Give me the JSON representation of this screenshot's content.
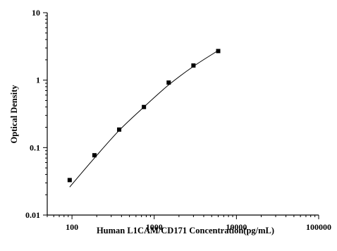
{
  "chart_data": {
    "type": "scatter",
    "title": "",
    "xlabel": "Human L1CAM/CD171 Concentration(pg/mL)",
    "ylabel": "Optical Density",
    "x_scale": "log",
    "y_scale": "log",
    "xlim": [
      50,
      100000
    ],
    "ylim": [
      0.01,
      10
    ],
    "x_ticks": [
      100,
      1000,
      10000,
      100000
    ],
    "x_tick_labels": [
      "100",
      "1000",
      "10000",
      "100000"
    ],
    "y_ticks": [
      0.01,
      0.1,
      1,
      10
    ],
    "y_tick_labels": [
      "0.01",
      "0.1",
      "1",
      "10"
    ],
    "grid": false,
    "legend": "none",
    "series": [
      {
        "x": [
          93.75,
          187.5,
          375,
          750,
          1500,
          3000,
          6000
        ],
        "y": [
          0.033,
          0.077,
          0.185,
          0.4,
          0.92,
          1.65,
          2.7
        ]
      }
    ],
    "fit_curve": {
      "x": [
        93.75,
        187.5,
        375,
        750,
        1500,
        3000,
        6000
      ],
      "y": [
        0.026,
        0.07,
        0.18,
        0.4,
        0.85,
        1.6,
        2.75
      ]
    }
  }
}
